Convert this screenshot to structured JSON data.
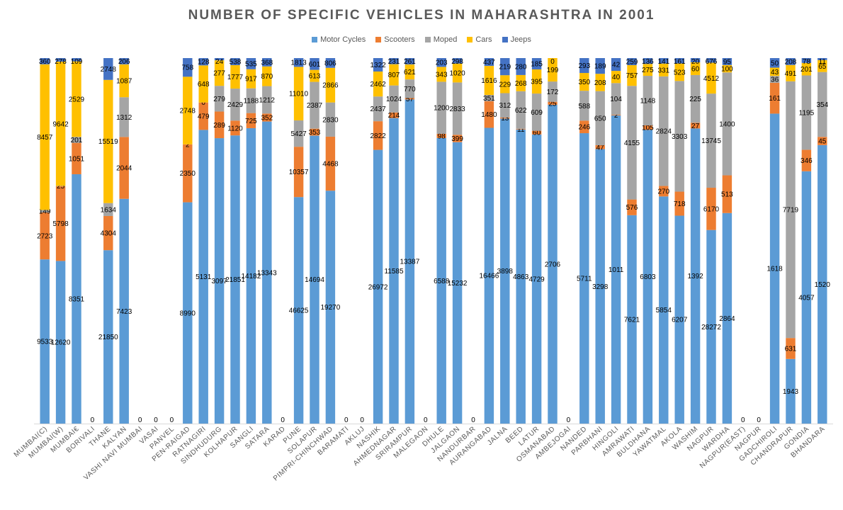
{
  "chart_data": {
    "type": "bar",
    "stacked": true,
    "normalized": true,
    "title": "NUMBER OF SPECIFIC VEHICLES IN MAHARASHTRA IN 2001",
    "legend_position": "top",
    "grid": false,
    "colors": {
      "Motor Cycles": "#5b9bd5",
      "Scooters": "#ed7d31",
      "Moped": "#a5a5a5",
      "Cars": "#ffc000",
      "Jeeps": "#4472c4"
    },
    "categories": [
      "MUMBAI(C)",
      "MUMBAI(W)",
      "MUMBAI€",
      "BORIVALI",
      "THANE",
      "KALYAN",
      "VASHI NAVI MUMBAI",
      "VASAI",
      "PANVEL",
      "PEN-RAIGAD",
      "RATNAGIRI",
      "SINDHUDURG",
      "KOLHAPUR",
      "SANGLI",
      "SATARA",
      "KARAD",
      "PUNE",
      "SOLAPUR",
      "PIMPRI-CHINCHWAD",
      "BARAMATI",
      "AKLUJ",
      "NASHIK",
      "AHMEDNAGAR",
      "SRIRAMPUR",
      "MALEGAON",
      "DHULE",
      "JALGAON",
      "NANDURBAR",
      "AURANGABAD",
      "JALNA",
      "BEED",
      "LATUR",
      "OSMANABAD",
      "AMBEJOGAI",
      "NANDED",
      "PARBHANI",
      "HINGOLI",
      "AMRAWATI",
      "BULDHANA",
      "YAWATMAL",
      "AKOLA",
      "WASHIM",
      "NAGPUR",
      "WARDHA",
      "NAGPUR(EAST)",
      "NAGPUR",
      "GADCHIROLI",
      "CHANDRAPUR",
      "GONDIA",
      "BHANDARA"
    ],
    "series": [
      {
        "name": "Motor Cycles",
        "values": [
          9533,
          12620,
          8351,
          0,
          21850,
          7423,
          0,
          0,
          0,
          8990,
          5131,
          3097,
          21851,
          14182,
          13343,
          0,
          46625,
          14694,
          19270,
          0,
          0,
          26972,
          11585,
          13387,
          0,
          6588,
          15232,
          0,
          16466,
          3898,
          4863,
          4729,
          2706,
          0,
          5711,
          3298,
          1011,
          7621,
          6803,
          5854,
          6207,
          1392,
          28272,
          2864,
          0,
          0,
          1618,
          1943,
          4057,
          1520
        ]
      },
      {
        "name": "Scooters",
        "values": [
          2723,
          5798,
          1051,
          0,
          4304,
          2044,
          0,
          0,
          0,
          2350,
          479,
          289,
          1120,
          725,
          352,
          0,
          10357,
          353,
          4468,
          0,
          0,
          2822,
          214,
          57,
          0,
          98,
          399,
          0,
          1480,
          13,
          11,
          60,
          25,
          0,
          246,
          47,
          2,
          576,
          105,
          270,
          718,
          27,
          6170,
          513,
          0,
          0,
          161,
          631,
          346,
          45
        ]
      },
      {
        "name": "Moped",
        "values": [
          149,
          25,
          201,
          0,
          1634,
          1312,
          0,
          0,
          0,
          2,
          0,
          279,
          2429,
          1188,
          1212,
          0,
          5427,
          2387,
          2830,
          0,
          0,
          2437,
          1024,
          770,
          0,
          1200,
          2833,
          0,
          351,
          312,
          622,
          609,
          172,
          0,
          588,
          650,
          104,
          4155,
          1148,
          2824,
          3303,
          225,
          13745,
          1400,
          0,
          0,
          36,
          7719,
          1195,
          354
        ]
      },
      {
        "name": "Cars",
        "values": [
          8457,
          9642,
          2529,
          0,
          15519,
          1087,
          0,
          0,
          0,
          2748,
          648,
          277,
          1777,
          917,
          870,
          0,
          11010,
          613,
          2866,
          0,
          0,
          2462,
          807,
          621,
          0,
          343,
          1020,
          0,
          1616,
          229,
          268,
          395,
          199,
          0,
          350,
          208,
          40,
          757,
          275,
          331,
          523,
          60,
          4512,
          100,
          0,
          0,
          43,
          491,
          201,
          65
        ]
      },
      {
        "name": "Jeeps",
        "values": [
          360,
          278,
          109,
          0,
          2748,
          206,
          0,
          0,
          0,
          758,
          128,
          24,
          538,
          535,
          368,
          0,
          1813,
          601,
          806,
          0,
          0,
          1322,
          231,
          261,
          0,
          203,
          298,
          0,
          437,
          219,
          280,
          185,
          0,
          0,
          293,
          189,
          42,
          259,
          136,
          141,
          161,
          20,
          676,
          95,
          0,
          0,
          50,
          208,
          78,
          11
        ]
      }
    ]
  }
}
